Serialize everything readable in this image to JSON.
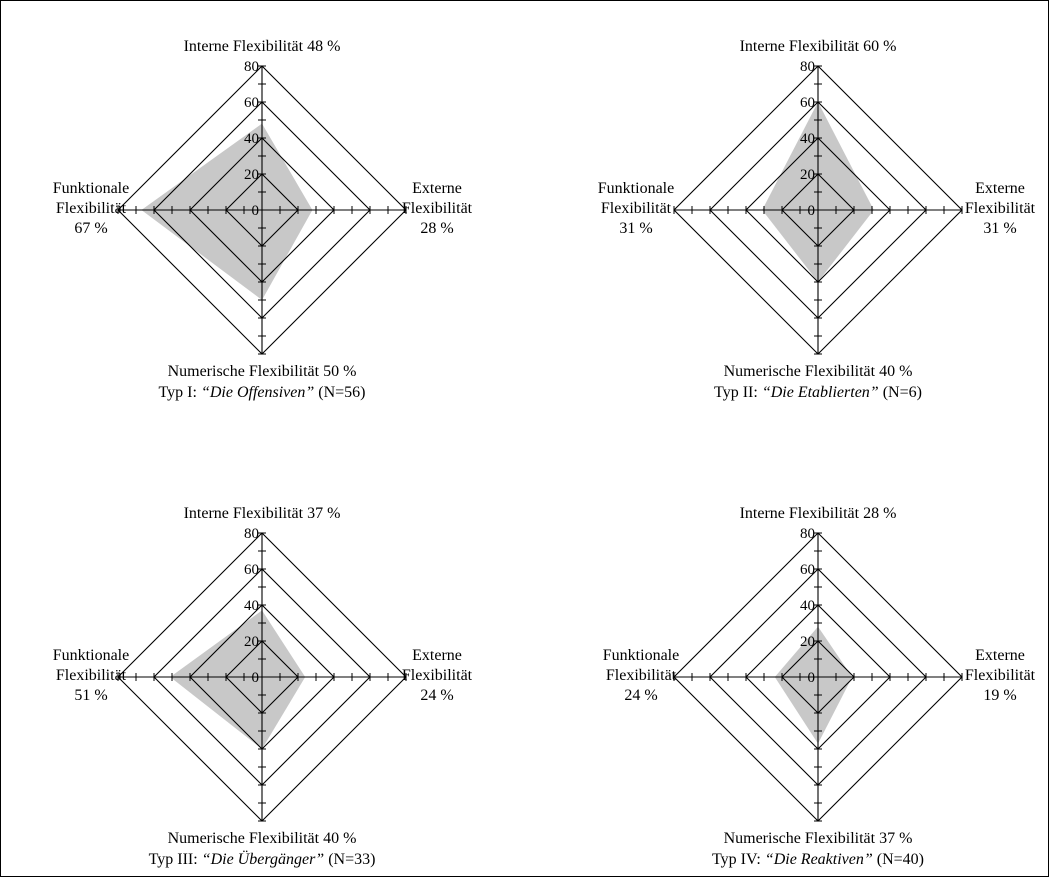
{
  "chart_data": [
    {
      "type": "radar",
      "axis_ticks": [
        "0",
        "20",
        "40",
        "60",
        "80"
      ],
      "rmax": 80,
      "fill_color": "#c8c8c8",
      "grid_color": "#000000",
      "top_label": "Interne Flexibilität 48 %",
      "bottom_label": "Numerische Flexibilität 50 %",
      "left_label": [
        "Funktionale",
        "Flexibilität",
        "67 %"
      ],
      "right_label": [
        "Externe",
        "Flexibilität",
        "28 %"
      ],
      "caption_prefix": "Typ I: ",
      "caption_name": "“Die Offensiven”",
      "caption_suffix": " (N=56)",
      "values": {
        "interne": 48,
        "externe": 28,
        "numerische": 50,
        "funktionale": 67
      }
    },
    {
      "type": "radar",
      "axis_ticks": [
        "0",
        "20",
        "40",
        "60",
        "80"
      ],
      "rmax": 80,
      "fill_color": "#c8c8c8",
      "grid_color": "#000000",
      "top_label": "Interne Flexibilität 60 %",
      "bottom_label": "Numerische Flexibilität 40 %",
      "left_label": [
        "Funktionale",
        "Flexibilität",
        "31 %"
      ],
      "right_label": [
        "Externe",
        "Flexibilität",
        "31 %"
      ],
      "caption_prefix": "Typ II: ",
      "caption_name": "“Die Etablierten”",
      "caption_suffix": " (N=6)",
      "values": {
        "interne": 60,
        "externe": 31,
        "numerische": 40,
        "funktionale": 31
      }
    },
    {
      "type": "radar",
      "axis_ticks": [
        "0",
        "20",
        "40",
        "60",
        "80"
      ],
      "rmax": 80,
      "fill_color": "#c8c8c8",
      "grid_color": "#000000",
      "top_label": "Interne Flexibilität 37 %",
      "bottom_label": "Numerische Flexibilität 40 %",
      "left_label": [
        "Funktionale",
        "Flexibilität",
        "51 %"
      ],
      "right_label": [
        "Externe",
        "Flexibilität",
        "24 %"
      ],
      "caption_prefix": "Typ III: ",
      "caption_name": "“Die Übergänger”",
      "caption_suffix": " (N=33)",
      "values": {
        "interne": 37,
        "externe": 24,
        "numerische": 40,
        "funktionale": 51
      }
    },
    {
      "type": "radar",
      "axis_ticks": [
        "0",
        "20",
        "40",
        "60",
        "80"
      ],
      "rmax": 80,
      "fill_color": "#c8c8c8",
      "grid_color": "#000000",
      "top_label": "Interne Flexibilität 28 %",
      "bottom_label": "Numerische Flexibilität 37 %",
      "left_label": [
        "Funktionale",
        "Flexibilität",
        "24 %"
      ],
      "right_label": [
        "Externe",
        "Flexibilität",
        "19 %"
      ],
      "caption_prefix": "Typ IV: ",
      "caption_name": "“Die Reaktiven”",
      "caption_suffix": " (N=40)",
      "values": {
        "interne": 28,
        "externe": 19,
        "numerische": 37,
        "funktionale": 24
      }
    }
  ]
}
